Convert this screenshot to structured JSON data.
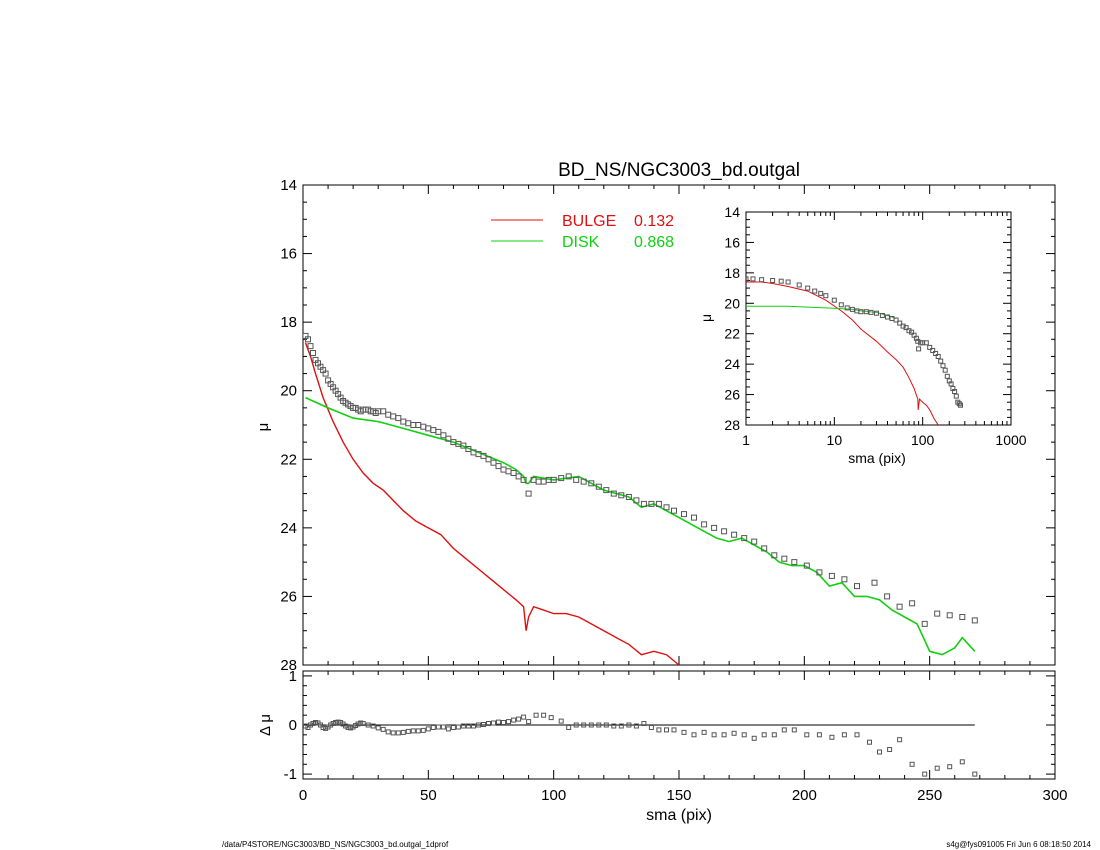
{
  "title": "BD_NS/NGC3003_bd.outgal",
  "footer": {
    "left": "/data/P4STORE/NGC3003/BD_NS/NGC3003_bd.outgal_1dprof",
    "right": "s4g@fys091005  Fri Jun  6 08:18:50 2014"
  },
  "colors": {
    "bulge": "#e01010",
    "disk": "#10d010",
    "data": "#555555",
    "axis": "#000000"
  },
  "chart_data": [
    {
      "type": "line",
      "panel": "main",
      "title": "BD_NS/NGC3003_bd.outgal",
      "xlabel": "",
      "ylabel": "μ",
      "xlim": [
        0,
        300
      ],
      "ylim": [
        28,
        14
      ],
      "y_inverted": true,
      "xticks": [],
      "yticks": [
        "14",
        "16",
        "18",
        "20",
        "22",
        "24",
        "26",
        "28"
      ],
      "legend": {
        "placement": "top-center",
        "entries": [
          {
            "series": "bulge",
            "label": "BULGE",
            "value": "0.132"
          },
          {
            "series": "disk",
            "label": "DISK",
            "value": "0.868"
          }
        ]
      },
      "series": [
        {
          "name": "BULGE",
          "key": "bulge",
          "x": [
            1,
            3,
            5,
            8,
            12,
            16,
            20,
            24,
            28,
            32,
            36,
            40,
            45,
            50,
            55,
            60,
            65,
            70,
            75,
            80,
            85,
            88,
            89,
            90,
            92,
            96,
            100,
            105,
            110,
            115,
            120,
            125,
            130,
            135,
            140,
            145,
            150
          ],
          "y": [
            18.6,
            19.0,
            19.5,
            20.2,
            20.9,
            21.5,
            22.0,
            22.4,
            22.7,
            22.9,
            23.2,
            23.5,
            23.8,
            24.0,
            24.2,
            24.6,
            24.9,
            25.2,
            25.5,
            25.8,
            26.1,
            26.3,
            27.0,
            26.6,
            26.3,
            26.4,
            26.5,
            26.5,
            26.6,
            26.8,
            27.0,
            27.2,
            27.4,
            27.7,
            27.6,
            27.7,
            28.0
          ]
        },
        {
          "name": "DISK",
          "key": "disk",
          "x": [
            1,
            10,
            20,
            30,
            40,
            50,
            60,
            70,
            80,
            85,
            88,
            89,
            90,
            92,
            100,
            110,
            120,
            130,
            135,
            140,
            150,
            160,
            165,
            170,
            175,
            180,
            185,
            190,
            195,
            200,
            205,
            210,
            215,
            220,
            225,
            230,
            235,
            240,
            245,
            250,
            255,
            260,
            263,
            268
          ],
          "y": [
            20.2,
            20.5,
            20.8,
            20.9,
            21.1,
            21.3,
            21.5,
            21.8,
            22.1,
            22.3,
            22.5,
            22.7,
            22.7,
            22.5,
            22.6,
            22.5,
            22.9,
            23.1,
            23.4,
            23.3,
            23.7,
            24.1,
            24.3,
            24.4,
            24.3,
            24.5,
            24.7,
            25.0,
            25.1,
            25.1,
            25.3,
            25.7,
            25.6,
            26.0,
            26.0,
            26.1,
            26.4,
            26.6,
            26.8,
            27.6,
            27.7,
            27.5,
            27.2,
            27.6
          ]
        },
        {
          "name": "data",
          "key": "data",
          "marker": "square",
          "x": [
            1,
            2,
            3,
            4,
            5,
            6,
            7,
            8,
            9,
            10,
            11,
            12,
            13,
            14,
            15,
            16,
            17,
            18,
            19,
            20,
            21,
            22,
            23,
            24,
            25,
            26,
            27,
            28,
            29,
            30,
            32,
            34,
            36,
            38,
            40,
            42,
            44,
            46,
            48,
            50,
            52,
            54,
            56,
            58,
            60,
            62,
            64,
            66,
            68,
            70,
            72,
            74,
            76,
            78,
            80,
            82,
            84,
            86,
            88,
            90,
            92,
            94,
            96,
            98,
            100,
            103,
            106,
            109,
            112,
            115,
            118,
            121,
            124,
            127,
            130,
            133,
            136,
            139,
            142,
            145,
            148,
            152,
            156,
            160,
            164,
            168,
            172,
            176,
            180,
            184,
            188,
            192,
            196,
            201,
            206,
            211,
            216,
            221,
            228,
            233,
            238,
            243,
            248,
            253,
            258,
            263,
            268
          ],
          "y": [
            18.4,
            18.5,
            18.7,
            18.9,
            19.1,
            19.2,
            19.3,
            19.4,
            19.5,
            19.7,
            19.8,
            19.9,
            20.0,
            20.1,
            20.2,
            20.3,
            20.35,
            20.4,
            20.45,
            20.5,
            20.5,
            20.55,
            20.6,
            20.55,
            20.55,
            20.55,
            20.6,
            20.6,
            20.65,
            20.6,
            20.6,
            20.7,
            20.75,
            20.8,
            20.9,
            20.95,
            21.0,
            21.0,
            21.05,
            21.1,
            21.15,
            21.2,
            21.3,
            21.4,
            21.5,
            21.55,
            21.6,
            21.7,
            21.8,
            21.85,
            21.9,
            22.0,
            22.1,
            22.2,
            22.3,
            22.35,
            22.4,
            22.5,
            22.6,
            23.0,
            22.6,
            22.65,
            22.65,
            22.6,
            22.6,
            22.55,
            22.5,
            22.6,
            22.65,
            22.7,
            22.8,
            22.9,
            23.0,
            23.05,
            23.1,
            23.2,
            23.3,
            23.3,
            23.3,
            23.4,
            23.5,
            23.6,
            23.7,
            23.9,
            24.0,
            24.1,
            24.2,
            24.3,
            24.4,
            24.6,
            24.8,
            24.9,
            25.0,
            25.1,
            25.3,
            25.4,
            25.5,
            25.7,
            25.6,
            26.0,
            26.3,
            26.2,
            26.8,
            26.5,
            26.55,
            26.6,
            26.7
          ]
        }
      ]
    },
    {
      "type": "scatter",
      "panel": "residual",
      "xlabel": "sma (pix)",
      "ylabel": "Δ μ",
      "xlim": [
        0,
        300
      ],
      "ylim": [
        -1.1,
        1.1
      ],
      "xticks": [
        "0",
        "50",
        "100",
        "150",
        "200",
        "250",
        "300"
      ],
      "yticks": [
        "1",
        "0",
        "-1"
      ],
      "zero_line": {
        "x_start": 0,
        "x_end": 268
      },
      "series": [
        {
          "name": "residual",
          "key": "data",
          "marker": "square",
          "x": [
            1,
            2,
            3,
            4,
            5,
            6,
            7,
            8,
            9,
            10,
            11,
            12,
            13,
            14,
            15,
            16,
            17,
            18,
            19,
            20,
            21,
            22,
            23,
            24,
            26,
            28,
            30,
            32,
            34,
            36,
            38,
            40,
            42,
            44,
            46,
            48,
            50,
            52,
            54,
            56,
            58,
            60,
            62,
            64,
            66,
            68,
            70,
            72,
            74,
            76,
            78,
            80,
            82,
            84,
            86,
            88,
            90,
            93,
            96,
            99,
            103,
            106,
            109,
            112,
            115,
            118,
            121,
            124,
            127,
            130,
            133,
            136,
            139,
            142,
            145,
            148,
            152,
            156,
            160,
            164,
            168,
            172,
            176,
            180,
            184,
            188,
            192,
            196,
            201,
            206,
            211,
            216,
            221,
            226,
            230,
            234,
            238,
            243,
            248,
            253,
            258,
            263,
            268
          ],
          "y": [
            -0.02,
            -0.05,
            0.0,
            0.03,
            0.05,
            0.04,
            0.0,
            -0.05,
            -0.07,
            -0.04,
            0.0,
            0.03,
            0.05,
            0.06,
            0.05,
            0.02,
            -0.02,
            -0.05,
            -0.06,
            -0.04,
            -0.01,
            0.02,
            0.04,
            0.03,
            0.0,
            -0.02,
            -0.06,
            -0.09,
            -0.14,
            -0.16,
            -0.16,
            -0.15,
            -0.13,
            -0.12,
            -0.12,
            -0.11,
            -0.08,
            -0.05,
            -0.04,
            -0.04,
            -0.08,
            -0.05,
            -0.04,
            -0.02,
            -0.02,
            -0.02,
            0.0,
            0.01,
            0.03,
            0.04,
            0.06,
            0.05,
            0.07,
            0.1,
            0.12,
            0.16,
            0.07,
            0.2,
            0.2,
            0.15,
            0.08,
            -0.05,
            0.0,
            0.0,
            0.0,
            0.0,
            0.0,
            -0.02,
            -0.02,
            0.0,
            -0.02,
            0.03,
            -0.05,
            -0.1,
            -0.1,
            -0.1,
            -0.15,
            -0.2,
            -0.15,
            -0.2,
            -0.2,
            -0.17,
            -0.2,
            -0.27,
            -0.2,
            -0.2,
            -0.1,
            -0.1,
            -0.2,
            -0.2,
            -0.25,
            -0.2,
            -0.2,
            -0.35,
            -0.55,
            -0.5,
            -0.3,
            -0.8,
            -1.0,
            -0.88,
            -0.85,
            -0.75,
            -1.0
          ]
        }
      ]
    },
    {
      "type": "line",
      "panel": "inset",
      "xlabel": "sma (pix)",
      "ylabel": "μ",
      "x_scale": "log",
      "xlim": [
        1,
        1000
      ],
      "ylim": [
        28,
        14
      ],
      "y_inverted": true,
      "xticks": [
        "1",
        "10",
        "100",
        "1000"
      ],
      "yticks": [
        "14",
        "16",
        "18",
        "20",
        "22",
        "24",
        "26",
        "28"
      ],
      "series": [
        {
          "name": "BULGE",
          "key": "bulge",
          "x": [
            1,
            1.5,
            2,
            3,
            5,
            8,
            12,
            16,
            20,
            30,
            40,
            50,
            60,
            70,
            80,
            88,
            89,
            92,
            100,
            110,
            120,
            135,
            150
          ],
          "y": [
            18.6,
            18.6,
            18.7,
            18.9,
            19.2,
            19.8,
            20.5,
            21.1,
            21.7,
            22.5,
            23.2,
            23.7,
            24.2,
            24.9,
            25.6,
            26.3,
            27.0,
            26.3,
            26.5,
            26.7,
            27.0,
            27.6,
            28.0
          ]
        },
        {
          "name": "DISK",
          "key": "disk",
          "x": [
            1,
            2,
            3,
            5,
            8,
            12,
            16,
            20,
            25,
            30,
            40,
            50
          ],
          "y": [
            20.2,
            20.2,
            20.2,
            20.25,
            20.3,
            20.35,
            20.4,
            20.5,
            20.55,
            20.6,
            20.8,
            21.0
          ]
        },
        {
          "name": "data",
          "key": "data",
          "marker": "square",
          "x": [
            1,
            1.2,
            1.5,
            2,
            2.5,
            3,
            4,
            5,
            6,
            7,
            8,
            10,
            12,
            14,
            16,
            18,
            20,
            23,
            26,
            30,
            35,
            40,
            45,
            50,
            55,
            60,
            65,
            70,
            75,
            80,
            85,
            88,
            90,
            95,
            100,
            110,
            120,
            130,
            140,
            150,
            160,
            170,
            180,
            190,
            200,
            210,
            220,
            230,
            240,
            250,
            260,
            268
          ],
          "y": [
            18.4,
            18.4,
            18.45,
            18.5,
            18.55,
            18.6,
            18.8,
            19.0,
            19.2,
            19.35,
            19.5,
            19.8,
            20.1,
            20.3,
            20.4,
            20.5,
            20.55,
            20.55,
            20.6,
            20.65,
            20.8,
            20.9,
            21.0,
            21.1,
            21.3,
            21.5,
            21.6,
            21.8,
            21.9,
            22.1,
            22.3,
            22.5,
            23.0,
            22.6,
            22.6,
            22.6,
            22.9,
            23.1,
            23.3,
            23.5,
            23.8,
            24.1,
            24.4,
            24.8,
            25.1,
            25.3,
            25.6,
            25.8,
            26.1,
            26.5,
            26.6,
            26.7
          ]
        }
      ]
    }
  ]
}
